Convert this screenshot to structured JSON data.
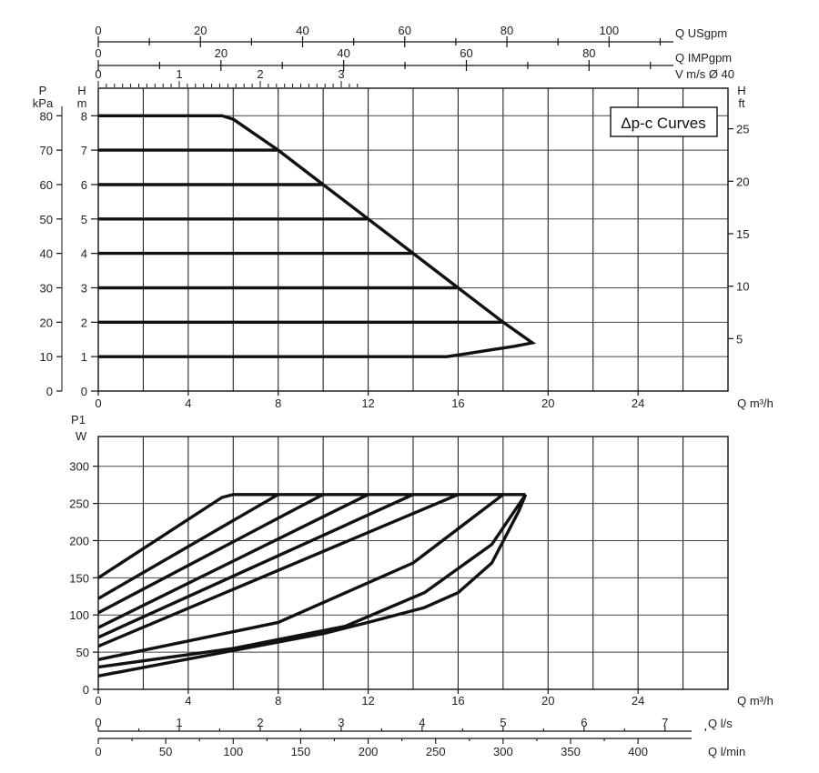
{
  "chart_data": [
    {
      "type": "line",
      "title": "Δp-c Curves",
      "xlabel": "Q m³/h",
      "ylabel_left_outer": "P kPa",
      "ylabel_left_inner": "H m",
      "ylabel_right": "H ft",
      "xlim": [
        0,
        28
      ],
      "ylim": [
        0,
        8.8
      ],
      "x_ticks": [
        "0",
        "4",
        "8",
        "12",
        "16",
        "20",
        "24"
      ],
      "p_ticks": [
        "0",
        "10",
        "20",
        "30",
        "40",
        "50",
        "60",
        "70",
        "80"
      ],
      "h_ticks": [
        "0",
        "1",
        "2",
        "3",
        "4",
        "5",
        "6",
        "7",
        "8"
      ],
      "ft_ticks": [
        "5",
        "10",
        "15",
        "20",
        "25"
      ],
      "top_axes": [
        {
          "label": "Q USgpm",
          "ticks": [
            "0",
            "20",
            "40",
            "60",
            "80",
            "100"
          ]
        },
        {
          "label": "Q IMPgpm",
          "ticks": [
            "0",
            "20",
            "40",
            "60",
            "80"
          ]
        },
        {
          "label": "V m/s Ø 40",
          "ticks": [
            "0",
            "1",
            "2",
            "3"
          ]
        }
      ],
      "series": [
        {
          "x": [
            0,
            15.5,
            16.5,
            17.5,
            18.5,
            19.3,
            18.0,
            16.0,
            14.0,
            12.0,
            10.0,
            8.0,
            6.0,
            5.5,
            0
          ],
          "y": [
            1.0,
            1.0,
            1.1,
            1.2,
            1.3,
            1.4,
            2.0,
            3.0,
            4.0,
            5.0,
            6.0,
            7.0,
            7.9,
            8.0,
            8.0
          ]
        },
        {
          "x": [
            0,
            17.95
          ],
          "y": [
            2.0,
            2.0
          ]
        },
        {
          "x": [
            0,
            15.95
          ],
          "y": [
            3.0,
            3.0
          ]
        },
        {
          "x": [
            0,
            13.95
          ],
          "y": [
            4.0,
            4.0
          ]
        },
        {
          "x": [
            0,
            11.95
          ],
          "y": [
            5.0,
            5.0
          ]
        },
        {
          "x": [
            0,
            9.95
          ],
          "y": [
            6.0,
            6.0
          ]
        },
        {
          "x": [
            0,
            7.95
          ],
          "y": [
            7.0,
            7.0
          ]
        }
      ]
    },
    {
      "type": "line",
      "xlabel": "Q m³/h",
      "ylabel": "P1 W",
      "xlim": [
        0,
        28
      ],
      "ylim": [
        0,
        340
      ],
      "x_ticks": [
        "0",
        "4",
        "8",
        "12",
        "16",
        "20",
        "24"
      ],
      "y_ticks": [
        "0",
        "50",
        "100",
        "150",
        "200",
        "250",
        "300"
      ],
      "bottom_axes": [
        {
          "label": "Q l/s",
          "ticks": [
            "0",
            "1",
            "2",
            "3",
            "4",
            "5",
            "6",
            "7"
          ]
        },
        {
          "label": "Q l/min",
          "ticks": [
            "0",
            "50",
            "100",
            "150",
            "200",
            "250",
            "300",
            "350",
            "400"
          ]
        }
      ],
      "series": [
        {
          "x": [
            0,
            5.5,
            6.0,
            19.0
          ],
          "y": [
            150,
            258,
            262,
            262
          ]
        },
        {
          "x": [
            0,
            8.0
          ],
          "y": [
            122,
            262
          ]
        },
        {
          "x": [
            0,
            10.0
          ],
          "y": [
            103,
            262
          ]
        },
        {
          "x": [
            0,
            12.0
          ],
          "y": [
            83,
            262
          ]
        },
        {
          "x": [
            0,
            14.0
          ],
          "y": [
            70,
            262
          ]
        },
        {
          "x": [
            0,
            16.0
          ],
          "y": [
            58,
            262
          ]
        },
        {
          "x": [
            0,
            8.0,
            14.0,
            18.0
          ],
          "y": [
            40,
            90,
            170,
            262
          ]
        },
        {
          "x": [
            0,
            6.0,
            11.0,
            14.5,
            17.5,
            19.0
          ],
          "y": [
            30,
            55,
            85,
            130,
            195,
            262
          ]
        },
        {
          "x": [
            0,
            10.0,
            12.0,
            14.5,
            16.0,
            17.5,
            18.7,
            19.0
          ],
          "y": [
            18,
            75,
            90,
            110,
            130,
            170,
            240,
            262
          ]
        }
      ]
    }
  ]
}
